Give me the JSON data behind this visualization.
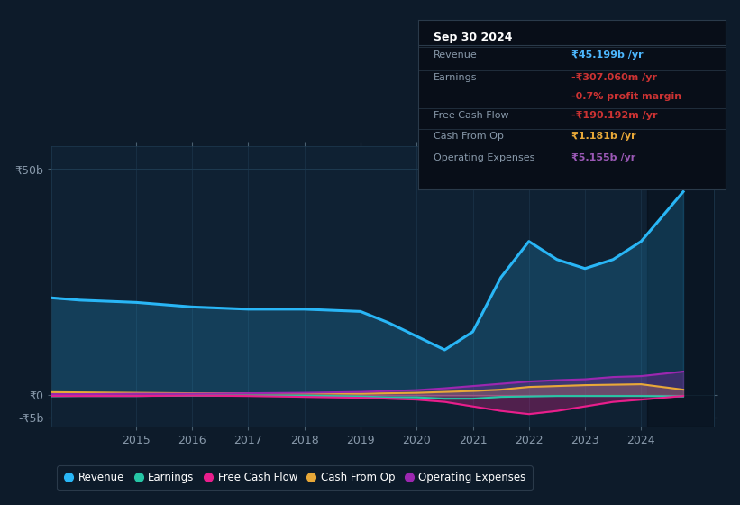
{
  "bg_color": "#0d1b2a",
  "plot_bg_color": "#0f2133",
  "grid_color": "#1e3a50",
  "title_box": {
    "date": "Sep 30 2024",
    "rows": [
      {
        "label": "Revenue",
        "value": "₹45.199b /yr",
        "value_color": "#4db8ff"
      },
      {
        "label": "Earnings",
        "value": "-₹307.060m /yr",
        "value_color": "#cc3333"
      },
      {
        "label": "",
        "value": "-0.7% profit margin",
        "value_color": "#cc3333"
      },
      {
        "label": "Free Cash Flow",
        "value": "-₹190.192m /yr",
        "value_color": "#cc3333"
      },
      {
        "label": "Cash From Op",
        "value": "₹1.181b /yr",
        "value_color": "#e8a838"
      },
      {
        "label": "Operating Expenses",
        "value": "₹5.155b /yr",
        "value_color": "#9b59b6"
      }
    ]
  },
  "ylim": [
    -7,
    55
  ],
  "yticks": [
    -5,
    0,
    50
  ],
  "ytick_labels": [
    "-₹5b",
    "₹0",
    "₹50b"
  ],
  "xlim": [
    2013.5,
    2025.3
  ],
  "xticks": [
    2015,
    2016,
    2017,
    2018,
    2019,
    2020,
    2021,
    2022,
    2023,
    2024
  ],
  "legend": [
    {
      "label": "Revenue",
      "color": "#29b6f6"
    },
    {
      "label": "Earnings",
      "color": "#26c6a6"
    },
    {
      "label": "Free Cash Flow",
      "color": "#e91e8c"
    },
    {
      "label": "Cash From Op",
      "color": "#e8a838"
    },
    {
      "label": "Operating Expenses",
      "color": "#9c27b0"
    }
  ],
  "series": {
    "years": [
      2013,
      2014,
      2015,
      2016,
      2017,
      2018,
      2019,
      2019.5,
      2020,
      2020.5,
      2021,
      2021.5,
      2022,
      2022.5,
      2023,
      2023.5,
      2024,
      2024.75
    ],
    "revenue": [
      22,
      21,
      20.5,
      19.5,
      19,
      19,
      18.5,
      16,
      13,
      10,
      14,
      26,
      34,
      30,
      28,
      30,
      34,
      45
    ],
    "earnings": [
      -0.3,
      -0.2,
      -0.2,
      -0.1,
      -0.1,
      -0.1,
      -0.3,
      -0.5,
      -0.5,
      -0.8,
      -0.8,
      -0.4,
      -0.3,
      -0.2,
      -0.2,
      -0.2,
      -0.2,
      -0.3
    ],
    "free_cash_flow": [
      -0.2,
      -0.2,
      -0.2,
      -0.1,
      -0.2,
      -0.4,
      -0.6,
      -0.8,
      -1.0,
      -1.5,
      -2.5,
      -3.5,
      -4.2,
      -3.5,
      -2.5,
      -1.5,
      -1.0,
      -0.2
    ],
    "cash_from_op": [
      0.7,
      0.6,
      0.5,
      0.4,
      0.4,
      0.4,
      0.3,
      0.4,
      0.5,
      0.7,
      0.9,
      1.2,
      1.8,
      2.0,
      2.2,
      2.3,
      2.4,
      1.2
    ],
    "op_expenses": [
      0.2,
      0.2,
      0.3,
      0.3,
      0.4,
      0.5,
      0.7,
      0.9,
      1.1,
      1.5,
      2.0,
      2.5,
      3.0,
      3.3,
      3.5,
      4.0,
      4.2,
      5.2
    ]
  }
}
